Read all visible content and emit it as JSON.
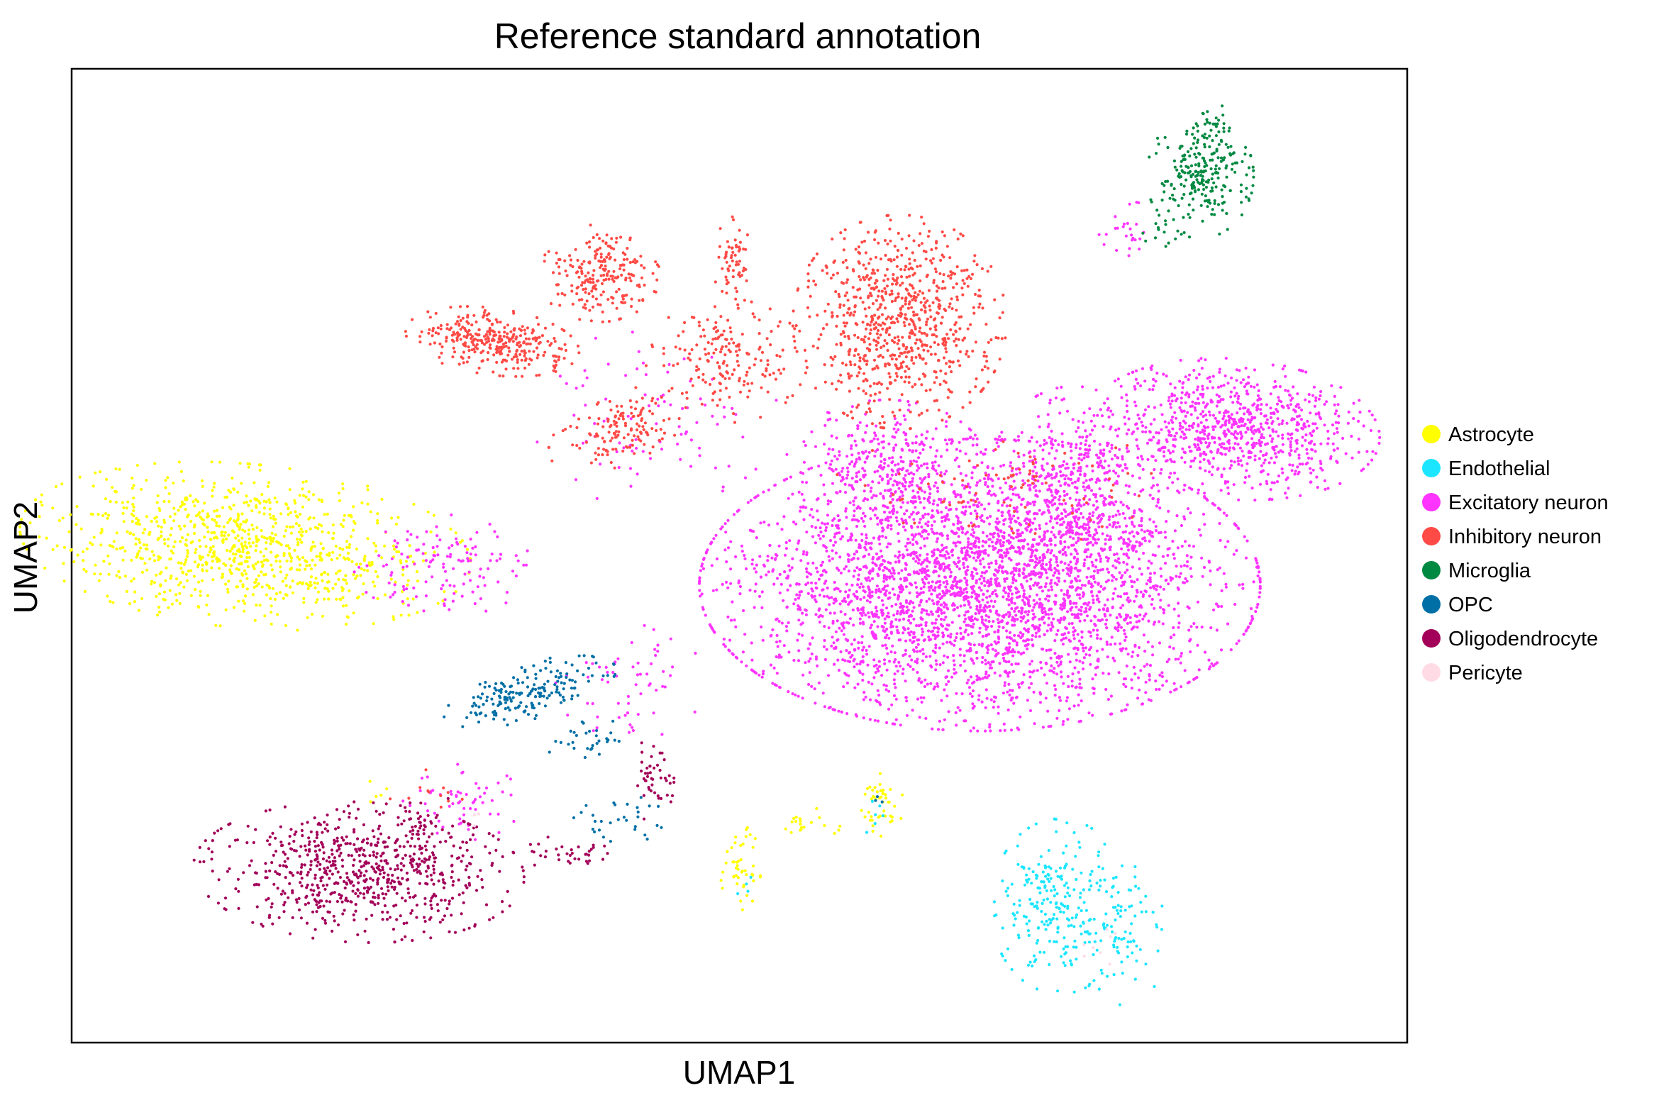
{
  "chart_data": {
    "type": "scatter",
    "title": "Reference standard annotation",
    "xlabel": "UMAP1",
    "ylabel": "UMAP2",
    "xlim": [
      0,
      100
    ],
    "ylim": [
      0,
      100
    ],
    "ticks": false,
    "grid": false,
    "legend_position": "right",
    "series": [
      {
        "name": "Astrocyte",
        "color": "#FFFF00",
        "clusters": [
          {
            "x": 13,
            "y": 51,
            "sx": 8.5,
            "sy": 4.2,
            "n": 950,
            "rot": -8
          },
          {
            "x": 50,
            "y": 18,
            "sx": 0.8,
            "sy": 2.2,
            "n": 45,
            "rot": 0
          },
          {
            "x": 55,
            "y": 22.5,
            "sx": 1.4,
            "sy": 0.8,
            "n": 20,
            "rot": 0
          },
          {
            "x": 60.5,
            "y": 24,
            "sx": 0.9,
            "sy": 2.2,
            "n": 45,
            "rot": 0
          },
          {
            "x": 23,
            "y": 26,
            "sx": 0.5,
            "sy": 0.8,
            "n": 5,
            "rot": 0
          }
        ]
      },
      {
        "name": "Endothelial",
        "color": "#1CE6FF",
        "clusters": [
          {
            "x": 74,
            "y": 14,
            "sx": 2.6,
            "sy": 4.5,
            "n": 230,
            "rot": 0
          },
          {
            "x": 79,
            "y": 11,
            "sx": 1.6,
            "sy": 3.6,
            "n": 70,
            "rot": 0
          },
          {
            "x": 72.5,
            "y": 17,
            "sx": 0.8,
            "sy": 1.2,
            "n": 25,
            "rot": 0
          },
          {
            "x": 60.5,
            "y": 23,
            "sx": 0.6,
            "sy": 1.2,
            "n": 6,
            "rot": 0
          },
          {
            "x": 50.3,
            "y": 16,
            "sx": 0.4,
            "sy": 0.8,
            "n": 4,
            "rot": 0
          }
        ]
      },
      {
        "name": "Excitatory neuron",
        "color": "#FF34FF",
        "clusters": [
          {
            "x": 68,
            "y": 47,
            "sx": 10.5,
            "sy": 7.5,
            "n": 3600,
            "rot": 0
          },
          {
            "x": 87,
            "y": 63,
            "sx": 5.5,
            "sy": 3.6,
            "n": 850,
            "rot": -8
          },
          {
            "x": 75,
            "y": 57,
            "sx": 3.2,
            "sy": 5.2,
            "n": 420,
            "rot": 0
          },
          {
            "x": 61,
            "y": 59,
            "sx": 3.8,
            "sy": 3.5,
            "n": 300,
            "rot": 0
          },
          {
            "x": 28,
            "y": 49,
            "sx": 3.5,
            "sy": 2.6,
            "n": 130,
            "rot": 0
          },
          {
            "x": 29,
            "y": 25,
            "sx": 2.4,
            "sy": 2.2,
            "n": 60,
            "rot": 0
          },
          {
            "x": 79,
            "y": 84,
            "sx": 1.2,
            "sy": 1.6,
            "n": 25,
            "rot": 0
          },
          {
            "x": 41.5,
            "y": 37,
            "sx": 3.0,
            "sy": 3.0,
            "n": 60,
            "rot": 0
          },
          {
            "x": 43,
            "y": 64,
            "sx": 5.0,
            "sy": 4.5,
            "n": 90,
            "rot": 0
          }
        ]
      },
      {
        "name": "Inhibitory neuron",
        "color": "#FF4A46",
        "clusters": [
          {
            "x": 62,
            "y": 74,
            "sx": 4.0,
            "sy": 5.5,
            "n": 780,
            "rot": 0
          },
          {
            "x": 31.5,
            "y": 72,
            "sx": 3.3,
            "sy": 1.7,
            "n": 330,
            "rot": -12
          },
          {
            "x": 39.5,
            "y": 79,
            "sx": 2.3,
            "sy": 2.5,
            "n": 220,
            "rot": 0
          },
          {
            "x": 41,
            "y": 63,
            "sx": 3.0,
            "sy": 1.7,
            "n": 140,
            "rot": 35
          },
          {
            "x": 49,
            "y": 70,
            "sx": 3.0,
            "sy": 3.2,
            "n": 180,
            "rot": 0
          },
          {
            "x": 49.5,
            "y": 80,
            "sx": 0.7,
            "sy": 2.4,
            "n": 60,
            "rot": 0
          },
          {
            "x": 70,
            "y": 57,
            "sx": 6.5,
            "sy": 3.0,
            "n": 90,
            "rot": 0
          },
          {
            "x": 27,
            "y": 25.5,
            "sx": 1.6,
            "sy": 1.3,
            "n": 12,
            "rot": 0
          }
        ]
      },
      {
        "name": "Microglia",
        "color": "#008941",
        "clusters": [
          {
            "x": 84.5,
            "y": 89,
            "sx": 2.0,
            "sy": 3.2,
            "n": 240,
            "rot": 0
          },
          {
            "x": 85.5,
            "y": 94,
            "sx": 0.6,
            "sy": 1.3,
            "n": 25,
            "rot": 0
          },
          {
            "x": 81.5,
            "y": 83,
            "sx": 0.8,
            "sy": 0.9,
            "n": 12,
            "rot": 0
          }
        ]
      },
      {
        "name": "OPC",
        "color": "#006FA6",
        "clusters": [
          {
            "x": 34,
            "y": 36,
            "sx": 3.6,
            "sy": 1.4,
            "n": 190,
            "rot": 22
          },
          {
            "x": 38.5,
            "y": 31,
            "sx": 1.5,
            "sy": 1.4,
            "n": 30,
            "rot": 0
          },
          {
            "x": 41,
            "y": 23,
            "sx": 1.7,
            "sy": 1.6,
            "n": 30,
            "rot": 0
          },
          {
            "x": 60.5,
            "y": 25,
            "sx": 0.4,
            "sy": 0.6,
            "n": 3,
            "rot": 0
          }
        ]
      },
      {
        "name": "Oligodendrocyte",
        "color": "#A30059",
        "clusters": [
          {
            "x": 21.5,
            "y": 17.5,
            "sx": 6.2,
            "sy": 3.6,
            "n": 700,
            "rot": -4
          },
          {
            "x": 43.5,
            "y": 27,
            "sx": 0.8,
            "sy": 2.2,
            "n": 45,
            "rot": 0
          },
          {
            "x": 37.5,
            "y": 19.5,
            "sx": 2.0,
            "sy": 0.9,
            "n": 35,
            "rot": 0
          },
          {
            "x": 26.5,
            "y": 22,
            "sx": 1.5,
            "sy": 2.0,
            "n": 40,
            "rot": 0
          }
        ]
      },
      {
        "name": "Pericyte",
        "color": "#FFDBE5",
        "clusters": [
          {
            "x": 77.5,
            "y": 10.5,
            "sx": 1.0,
            "sy": 1.5,
            "n": 8,
            "rot": 0
          },
          {
            "x": 30,
            "y": 23,
            "sx": 0.8,
            "sy": 0.8,
            "n": 3,
            "rot": 0
          }
        ]
      }
    ]
  }
}
